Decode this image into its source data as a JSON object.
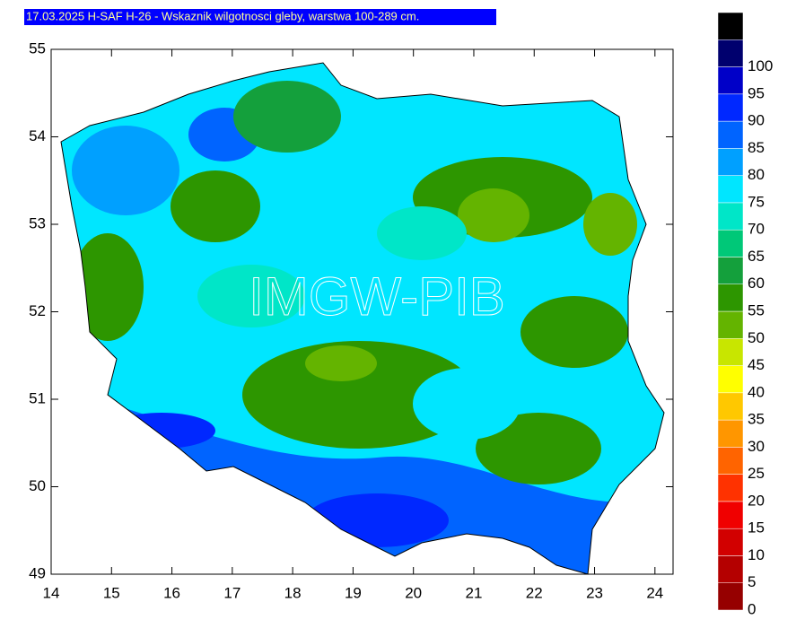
{
  "chart_data": {
    "type": "map",
    "title": "17.03.2025 H-SAF H-26 - Wskaznik wilgotnosci gleby, warstwa 100-289 cm.",
    "watermark": "IMGW-PIB",
    "xlim": [
      14,
      24.3
    ],
    "xticks": [
      14,
      15,
      16,
      17,
      18,
      19,
      20,
      21,
      22,
      23,
      24
    ],
    "ylim": [
      49,
      55
    ],
    "yticks": [
      49,
      50,
      51,
      52,
      53,
      54,
      55
    ],
    "colorbar": {
      "labels": [
        0,
        5,
        10,
        15,
        20,
        25,
        30,
        35,
        40,
        45,
        50,
        55,
        60,
        65,
        70,
        75,
        80,
        85,
        90,
        95,
        100
      ],
      "colors": [
        "#960000",
        "#b40000",
        "#d20000",
        "#f00000",
        "#ff3200",
        "#ff6400",
        "#ff9600",
        "#ffc800",
        "#ffff00",
        "#c8e600",
        "#64b400",
        "#2d9600",
        "#14a03c",
        "#00c878",
        "#00e6c8",
        "#00e6ff",
        "#00a0ff",
        "#0064ff",
        "#0028ff",
        "#0000c8",
        "#00006e",
        "#000000"
      ]
    }
  }
}
